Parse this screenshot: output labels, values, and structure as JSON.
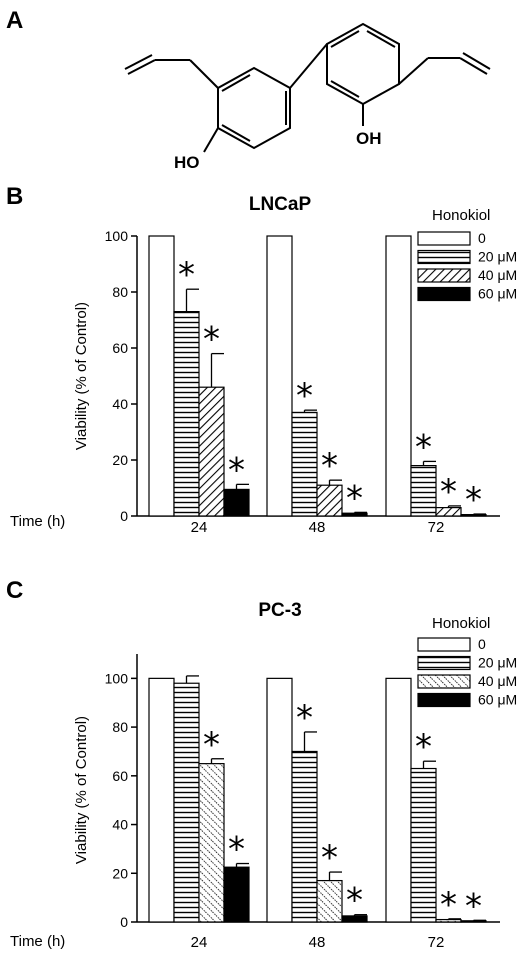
{
  "panels": {
    "a": "A",
    "b": "B",
    "c": "C"
  },
  "structure": {
    "ho_label": "HO",
    "oh_label": "OH"
  },
  "legend_title": "Honokiol",
  "time_label": "Time (h)",
  "ylabel": "Viability (% of Control)",
  "chart_data": [
    {
      "type": "bar",
      "title": "LNCaP",
      "xlabel": "Time (h)",
      "ylabel": "Viability (% of Control)",
      "ylim": [
        0,
        100
      ],
      "yticks": [
        0,
        20,
        40,
        60,
        80,
        100
      ],
      "categories": [
        "24",
        "48",
        "72"
      ],
      "legend_title": "Honokiol",
      "legend_position": "top-right",
      "series": [
        {
          "name": "0",
          "pattern": "white",
          "values": [
            100,
            100,
            100
          ],
          "errors": [
            0,
            0,
            0
          ],
          "significant": [
            false,
            false,
            false
          ]
        },
        {
          "name": "20 μM",
          "pattern": "horizontal",
          "values": [
            73,
            37,
            18
          ],
          "errors": [
            8,
            0.8,
            1.5
          ],
          "significant": [
            true,
            true,
            true
          ]
        },
        {
          "name": "40 μM",
          "pattern": "diagonal",
          "values": [
            46,
            11,
            3
          ],
          "errors": [
            12,
            1.8,
            0.6
          ],
          "significant": [
            true,
            true,
            true
          ]
        },
        {
          "name": "60 μM",
          "pattern": "black",
          "values": [
            9.5,
            1,
            0.5
          ],
          "errors": [
            1.8,
            0.3,
            0.2
          ],
          "significant": [
            true,
            true,
            true
          ]
        }
      ]
    },
    {
      "type": "bar",
      "title": "PC-3",
      "xlabel": "Time (h)",
      "ylabel": "Viability (% of Control)",
      "ylim": [
        0,
        110
      ],
      "yticks": [
        0,
        20,
        40,
        60,
        80,
        100
      ],
      "categories": [
        "24",
        "48",
        "72"
      ],
      "legend_title": "Honokiol",
      "legend_position": "top-right",
      "series": [
        {
          "name": "0",
          "pattern": "white",
          "values": [
            100,
            100,
            100
          ],
          "errors": [
            0,
            0,
            0
          ],
          "significant": [
            false,
            false,
            false
          ]
        },
        {
          "name": "20 μM",
          "pattern": "horizontal",
          "values": [
            98,
            70,
            63
          ],
          "errors": [
            3,
            8,
            3
          ],
          "significant": [
            false,
            true,
            true
          ]
        },
        {
          "name": "40 μM",
          "pattern": "dotted-diagonal",
          "values": [
            65,
            17,
            1
          ],
          "errors": [
            2,
            3.5,
            0.3
          ],
          "significant": [
            true,
            true,
            true
          ]
        },
        {
          "name": "60 μM",
          "pattern": "black",
          "values": [
            22.5,
            2.5,
            0.5
          ],
          "errors": [
            1.5,
            0.5,
            0.2
          ],
          "significant": [
            true,
            true,
            true
          ]
        }
      ]
    }
  ]
}
